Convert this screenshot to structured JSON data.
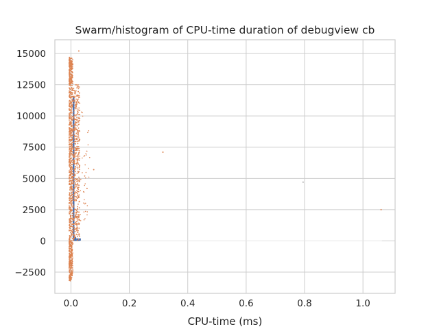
{
  "chart_data": {
    "type": "scatter",
    "title": "Swarm/histogram of CPU-time duration of debugview cb",
    "xlabel": "CPU-time (ms)",
    "ylabel": "",
    "xlim": [
      -0.055,
      1.11
    ],
    "ylim": [
      -4200,
      16100
    ],
    "xticks": [
      0.0,
      0.2,
      0.4,
      0.6,
      0.8,
      1.0
    ],
    "xtick_labels": [
      "0.0",
      "0.2",
      "0.4",
      "0.6",
      "0.8",
      "1.0"
    ],
    "yticks": [
      -2500,
      0,
      2500,
      5000,
      7500,
      10000,
      12500,
      15000
    ],
    "ytick_labels": [
      "−2500",
      "0",
      "2500",
      "5000",
      "7500",
      "10000",
      "12500",
      "15000"
    ],
    "grid": true,
    "colors": {
      "swarm": "#dd8452",
      "histogram": "#4c72b0"
    },
    "histogram": {
      "bins": [
        {
          "x0": 0.006,
          "x1": 0.012,
          "count": 11600
        },
        {
          "x0": 0.012,
          "x1": 0.018,
          "count": 300
        },
        {
          "x0": 0.018,
          "x1": 0.034,
          "count": 200
        }
      ]
    },
    "swarm": {
      "bulk_x_range": [
        -0.006,
        0.03
      ],
      "bulk_y_range": [
        -3200,
        14700
      ],
      "outliers": [
        {
          "x": 0.027,
          "y": 15200
        },
        {
          "x": 0.078,
          "y": 5700
        },
        {
          "x": 0.055,
          "y": 4200
        },
        {
          "x": 0.315,
          "y": 7100
        },
        {
          "x": 1.062,
          "y": 2500
        }
      ]
    },
    "extra_points": [
      {
        "x": 0.795,
        "y": 4700,
        "color": "#aaaaaa"
      }
    ]
  }
}
